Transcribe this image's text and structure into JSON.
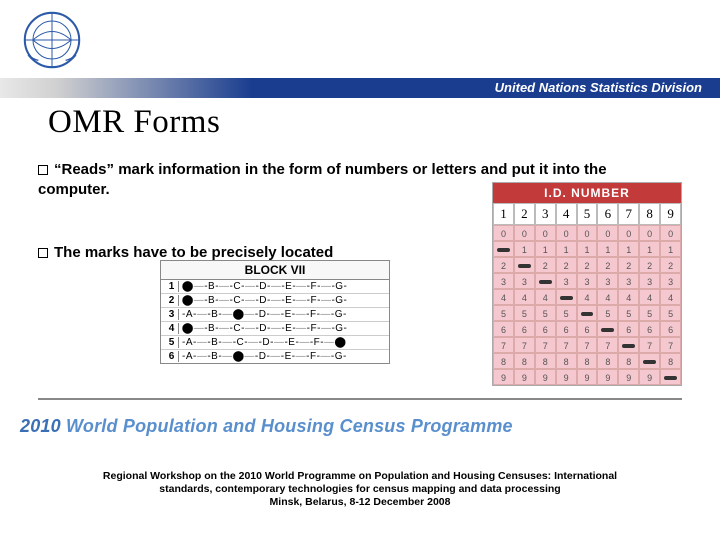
{
  "header": {
    "division_text": "United Nations Statistics Division",
    "bar_gradient_from": "#e8e8e8",
    "bar_blue": "#1a3d8f",
    "logo_color": "#2d5aa8"
  },
  "title": "OMR Forms",
  "bullets": [
    "“Reads” mark information in the form of numbers or letters and put it into the computer.",
    "The marks have to be precisely located"
  ],
  "block7": {
    "title": "BLOCK VII",
    "letters": [
      "A",
      "B",
      "C",
      "D",
      "E",
      "F",
      "G"
    ],
    "rows": [
      {
        "n": "1",
        "filled": "A"
      },
      {
        "n": "2",
        "filled": "A"
      },
      {
        "n": "3",
        "filled": "C"
      },
      {
        "n": "4",
        "filled": "A"
      },
      {
        "n": "5",
        "filled": "G"
      },
      {
        "n": "6",
        "filled": "C"
      }
    ]
  },
  "id_card": {
    "header": "I.D. NUMBER",
    "header_bg": "#c33a3a",
    "grid_bg": "#f5c7cf",
    "written": [
      "1",
      "2",
      "3",
      "4",
      "5",
      "6",
      "7",
      "8",
      "9"
    ],
    "grid_digits": [
      0,
      1,
      2,
      3,
      4,
      5,
      6,
      7,
      8,
      9
    ],
    "marks": [
      [
        1,
        0
      ],
      [
        2,
        1
      ],
      [
        3,
        2
      ],
      [
        4,
        3
      ],
      [
        5,
        4
      ],
      [
        6,
        5
      ],
      [
        7,
        6
      ],
      [
        8,
        7
      ],
      [
        9,
        8
      ]
    ]
  },
  "programme_line": {
    "year": "2010",
    "text": "World Population and Housing Census Programme"
  },
  "footer": {
    "line1": "Regional Workshop on the 2010 World Programme on Population and Housing Censuses: International",
    "line2": "standards, contemporary technologies for census mapping and data processing",
    "line3": "Minsk, Belarus, 8-12 December 2008"
  }
}
